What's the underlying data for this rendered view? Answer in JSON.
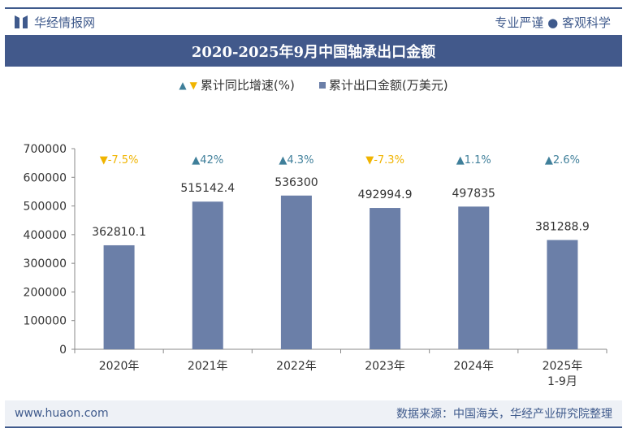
{
  "header": {
    "brand": "华经情报网",
    "slogan": "专业严谨 ● 客观科学"
  },
  "title": "2020-2025年9月中国轴承出口金额",
  "legend": {
    "growth": "累计同比增速(%)",
    "amount": "累计出口金额(万美元)"
  },
  "footer": {
    "website": "www.huaon.com",
    "source": "数据来源：中国海关，华经产业研究院整理"
  },
  "colors": {
    "bar": "#6b7fa8",
    "up": "#3f7f9a",
    "down": "#f0b400",
    "title_bg": "#42598b"
  },
  "chart_data": {
    "type": "bar",
    "categories": [
      "2020年",
      "2021年",
      "2022年",
      "2023年",
      "2024年",
      "2025年\n1-9月"
    ],
    "series": [
      {
        "name": "累计出口金额(万美元)",
        "values": [
          362810.1,
          515142.4,
          536300,
          492994.9,
          497835,
          381288.9
        ],
        "labels": [
          "362810.1",
          "515142.4",
          "536300",
          "492994.9",
          "497835",
          "381288.9"
        ]
      },
      {
        "name": "累计同比增速(%)",
        "values": [
          -7.5,
          42,
          4.3,
          -7.3,
          1.1,
          2.6
        ],
        "labels": [
          "-7.5%",
          "42%",
          "4.3%",
          "-7.3%",
          "1.1%",
          "2.6%"
        ]
      }
    ],
    "ylim": [
      0,
      700000
    ],
    "yticks": [
      "0",
      "100000",
      "200000",
      "300000",
      "400000",
      "500000",
      "600000",
      "700000"
    ],
    "grid": false,
    "legend_position": "top"
  }
}
